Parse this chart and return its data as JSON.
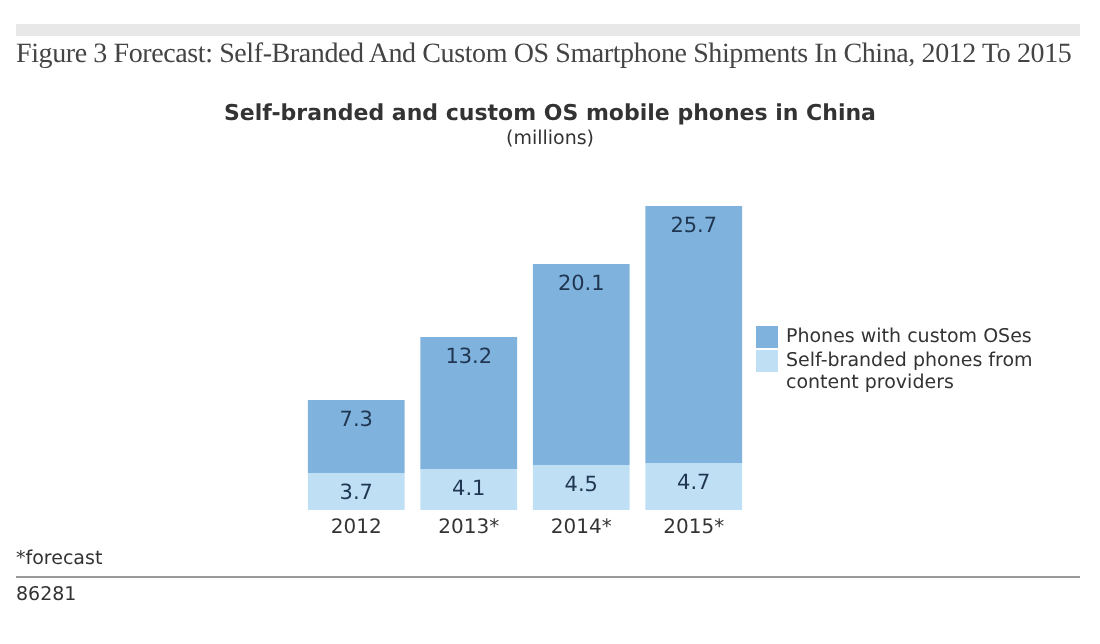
{
  "chart_data": {
    "type": "bar",
    "title": "Figure 3 Forecast: Self-Branded And Custom OS Smartphone Shipments In China, 2012 To 2015",
    "subtitle": "Self-branded and custom OS mobile phones in China",
    "ylabel": "(millions)",
    "categories": [
      "2012",
      "2013*",
      "2014*",
      "2015*"
    ],
    "stacked": true,
    "data_labels": true,
    "legend": "right",
    "grid": false,
    "tick_labels": "x",
    "series": [
      {
        "name": "Self-branded phones from content providers",
        "color": "#bfdff5",
        "values": [
          3.7,
          4.1,
          4.5,
          4.7
        ]
      },
      {
        "name": "Phones with custom OSes",
        "color": "#7fb2dc",
        "values": [
          7.3,
          13.2,
          20.1,
          25.7
        ]
      }
    ],
    "annotations": [
      "*forecast",
      "86281"
    ]
  }
}
